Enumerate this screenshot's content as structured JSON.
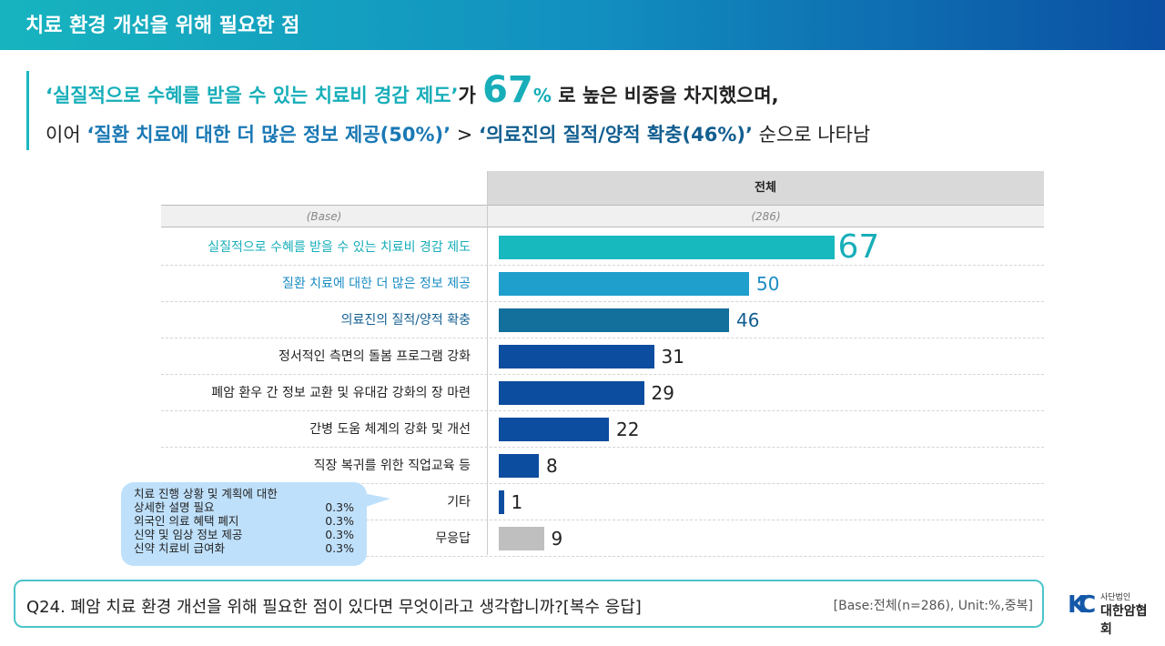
{
  "header": {
    "title": "치료 환경 개선을 위해 필요한 점"
  },
  "headline": {
    "l1_q": "‘실질적으로 수혜를 받을 수 있는 치료비 경감 제도’",
    "l1_ga": "가 ",
    "l1_num": "67",
    "l1_pct": "%",
    "l1_rest": " 로 높은 비중을 차지했으며,",
    "l2_pre": "이어 ",
    "l2_a": "‘질환 치료에 대한 더 많은 정보 제공(50%)’",
    "l2_gt": " > ",
    "l2_b": "‘의료진의 질적/양적 확충(46%)’",
    "l2_rest": " 순으로 나타남"
  },
  "table": {
    "column": "전체",
    "base_label": "(Base)",
    "base_value": "(286)"
  },
  "chart_data": {
    "type": "bar",
    "orientation": "horizontal",
    "xlim": [
      0,
      100
    ],
    "categories": [
      "실질적으로 수혜를 받을 수 있는 치료비 경감 제도",
      "질환 치료에 대한 더 많은 정보 제공",
      "의료진의 질적/양적 확충",
      "정서적인 측면의 돌봄 프로그램 강화",
      "폐암 환우 간 정보 교환 및 유대감 강화의 장 마련",
      "간병 도움 체계의 강화 및 개선",
      "직장 복귀를 위한 직업교육 등",
      "기타",
      "무응답"
    ],
    "values": [
      67,
      50,
      46,
      31,
      29,
      22,
      8,
      1,
      9
    ],
    "colors": [
      "#17b8be",
      "#1f9fcb",
      "#136f9c",
      "#0d4d9f",
      "#0d4d9f",
      "#0d4d9f",
      "#0d4d9f",
      "#0d4d9f",
      "#bfbfbf"
    ],
    "label_colors": [
      "#17aeb9",
      "#1a8cc4",
      "#125e90",
      "#222222",
      "#222222",
      "#222222",
      "#222222",
      "#222222",
      "#222222"
    ],
    "unit": "%"
  },
  "callout": {
    "items": [
      {
        "label": "치료 진행 상황 및 계획에 대한",
        "value": ""
      },
      {
        "label": "상세한 설명 필요",
        "value": "0.3%"
      },
      {
        "label": "외국인 의료 혜택 폐지",
        "value": "0.3%"
      },
      {
        "label": "신약 및 임상 정보 제공",
        "value": "0.3%"
      },
      {
        "label": "신약 치료비 급여화",
        "value": "0.3%"
      }
    ]
  },
  "footer": {
    "question": "Q24. 폐암 치료 환경 개선을 위해 필요한 점이 있다면 무엇이라고 생각합니까?[복수 응답]",
    "base": "[Base:전체(n=286), Unit:%,중복]"
  },
  "logo": {
    "mark": "KC",
    "small": "사단법인",
    "name": "대한암협회"
  }
}
